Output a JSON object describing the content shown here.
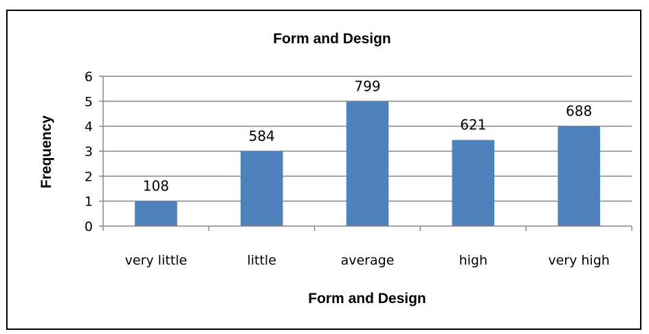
{
  "chart_data": {
    "type": "bar",
    "title": "Form and Design",
    "xlabel": "Form and Design",
    "ylabel": "Frequency",
    "categories": [
      "very little",
      "little",
      "average",
      "high",
      "very high"
    ],
    "values": [
      1,
      3,
      5,
      3.45,
      4
    ],
    "data_labels": [
      "108",
      "584",
      "799",
      "621",
      "688"
    ],
    "ylim": [
      0,
      6
    ],
    "yticks": [
      "0",
      "1",
      "2",
      "3",
      "4",
      "5",
      "6"
    ],
    "grid": true,
    "legend": "none",
    "bar_color": "#4f81bd"
  }
}
